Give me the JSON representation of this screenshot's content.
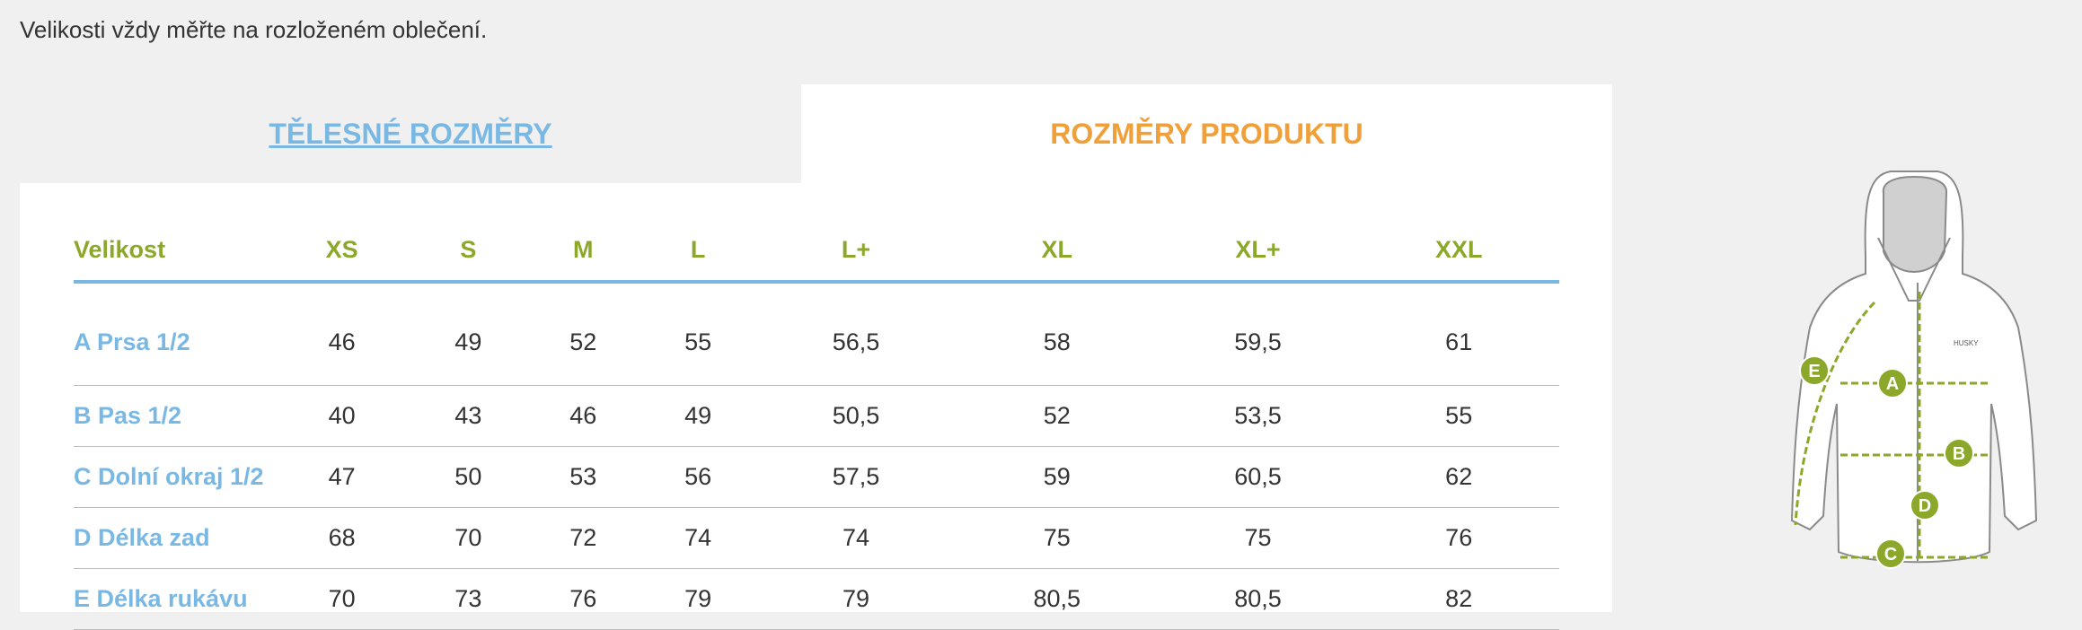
{
  "intro": "Velikosti vždy měřte na rozloženém oblečení.",
  "tabs": {
    "body_measurements": "TĚLESNÉ ROZMĚRY",
    "product_measurements": "ROZMĚRY PRODUKTU"
  },
  "table": {
    "headers": [
      "Velikost",
      "XS",
      "S",
      "M",
      "L",
      "L+",
      "XL",
      "XL+",
      "XXL"
    ],
    "rows": [
      {
        "label": "A Prsa 1/2",
        "values": [
          "46",
          "49",
          "52",
          "55",
          "56,5",
          "58",
          "59,5",
          "61"
        ]
      },
      {
        "label": "B Pas 1/2",
        "values": [
          "40",
          "43",
          "46",
          "49",
          "50,5",
          "52",
          "53,5",
          "55"
        ]
      },
      {
        "label": "C Dolní okraj 1/2",
        "values": [
          "47",
          "50",
          "53",
          "56",
          "57,5",
          "59",
          "60,5",
          "62"
        ]
      },
      {
        "label": "D Délka zad",
        "values": [
          "68",
          "70",
          "72",
          "74",
          "74",
          "75",
          "75",
          "76"
        ]
      },
      {
        "label": "E Délka rukávu",
        "values": [
          "70",
          "73",
          "76",
          "79",
          "79",
          "80,5",
          "80,5",
          "82"
        ]
      }
    ]
  },
  "figure": {
    "markers": [
      "A",
      "B",
      "C",
      "D",
      "E"
    ],
    "brand_text": "HUSKY"
  },
  "colors": {
    "header_green": "#8ba82a",
    "row_label_blue": "#7ab8e4",
    "active_tab_orange": "#f0a03a",
    "marker_green": "#8ba82a"
  }
}
